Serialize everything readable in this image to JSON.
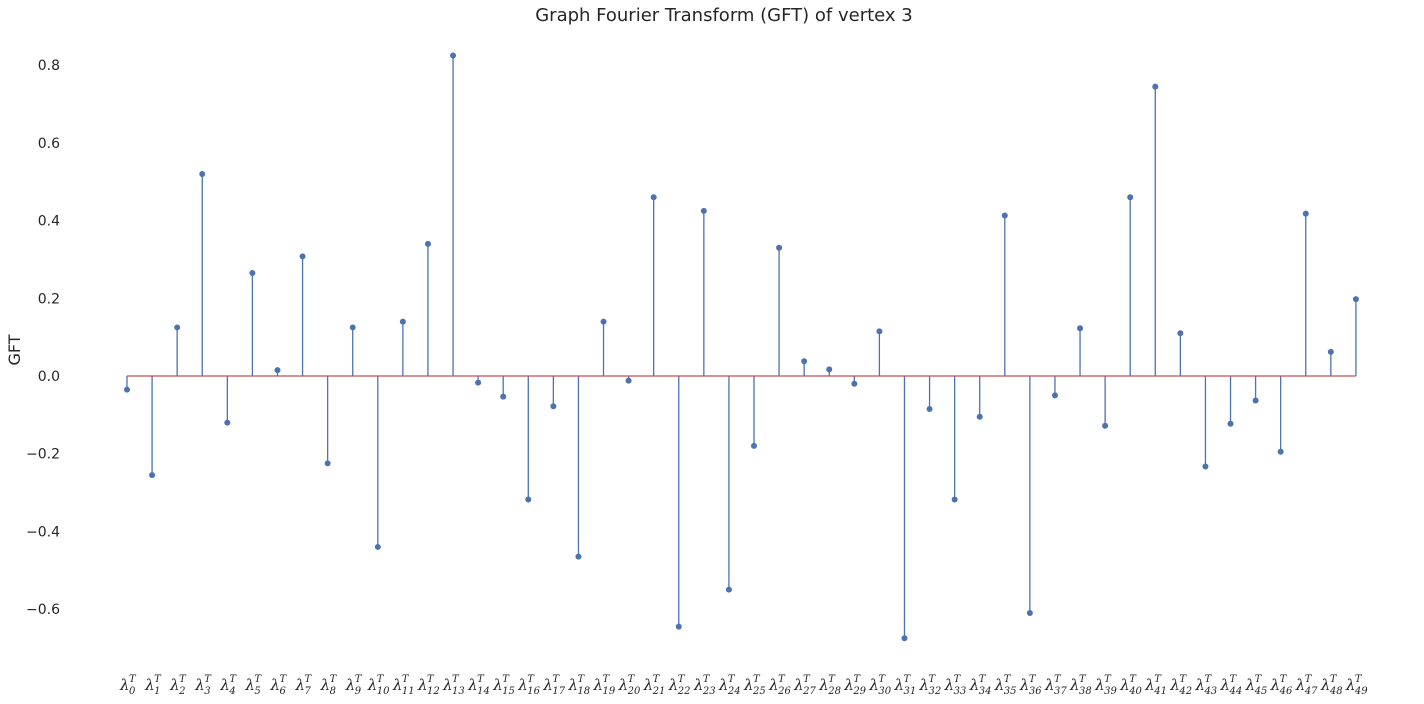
{
  "chart_data": {
    "type": "stem",
    "title": "Graph Fourier Transform (GFT) of vertex 3",
    "xlabel": "",
    "ylabel": "GFT",
    "ylim": [
      -0.72,
      0.86
    ],
    "yticks": [
      -0.6,
      -0.4,
      -0.2,
      0.0,
      0.2,
      0.4,
      0.6,
      0.8
    ],
    "ytick_labels": [
      "−0.6",
      "−0.4",
      "−0.2",
      "0.0",
      "0.2",
      "0.4",
      "0.6",
      "0.8"
    ],
    "grid": false,
    "stem_color": "#4c72b0",
    "baseline_color": "#c44e52",
    "x_tick_symbol": "λ",
    "x_tick_superscript": "T",
    "categories": [
      "0",
      "1",
      "2",
      "3",
      "4",
      "5",
      "6",
      "7",
      "8",
      "9",
      "10",
      "11",
      "12",
      "13",
      "14",
      "15",
      "16",
      "17",
      "18",
      "19",
      "20",
      "21",
      "22",
      "23",
      "24",
      "25",
      "26",
      "27",
      "28",
      "29",
      "30",
      "31",
      "32",
      "33",
      "34",
      "35",
      "36",
      "37",
      "38",
      "39",
      "40",
      "41",
      "42",
      "43",
      "44",
      "45",
      "46",
      "47",
      "48",
      "49"
    ],
    "values": [
      -0.035,
      -0.255,
      0.125,
      0.52,
      -0.12,
      0.265,
      0.015,
      0.308,
      -0.225,
      0.125,
      -0.44,
      0.14,
      0.34,
      0.825,
      -0.017,
      -0.053,
      -0.318,
      -0.078,
      -0.465,
      0.14,
      -0.012,
      0.46,
      -0.645,
      0.425,
      -0.55,
      -0.18,
      0.33,
      0.038,
      0.017,
      -0.02,
      0.115,
      -0.675,
      -0.085,
      -0.318,
      -0.105,
      0.413,
      -0.61,
      -0.05,
      0.123,
      -0.128,
      0.46,
      0.745,
      0.11,
      -0.233,
      -0.123,
      -0.063,
      -0.195,
      0.418,
      0.062,
      0.198
    ]
  }
}
